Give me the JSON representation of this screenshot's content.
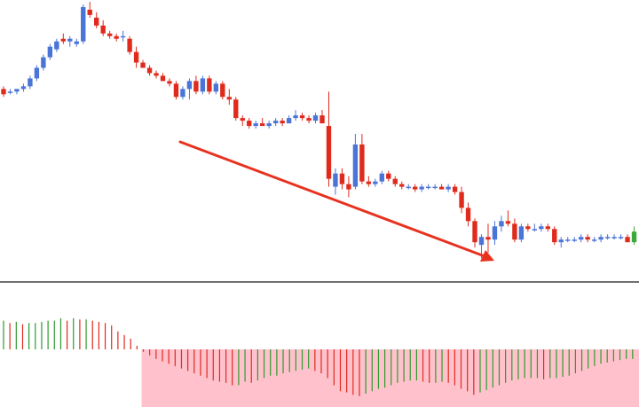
{
  "chart_data": [
    {
      "type": "candlestick",
      "title": "",
      "xlabel": "",
      "ylabel": "",
      "axes_labels_shown": false,
      "grid": false,
      "colors": {
        "up": "#4a74d8",
        "down": "#e02a1c",
        "neutral": "#3aa83a"
      },
      "ylim": [
        0,
        100
      ],
      "candles": [
        {
          "o": 67,
          "h": 68,
          "l": 64,
          "c": 65
        },
        {
          "o": 66,
          "h": 67,
          "l": 65,
          "c": 66
        },
        {
          "o": 66,
          "h": 67,
          "l": 65,
          "c": 67
        },
        {
          "o": 67,
          "h": 69,
          "l": 66,
          "c": 68
        },
        {
          "o": 68,
          "h": 72,
          "l": 67,
          "c": 71
        },
        {
          "o": 71,
          "h": 76,
          "l": 70,
          "c": 75
        },
        {
          "o": 75,
          "h": 80,
          "l": 74,
          "c": 79
        },
        {
          "o": 79,
          "h": 84,
          "l": 78,
          "c": 83
        },
        {
          "o": 82,
          "h": 86,
          "l": 81,
          "c": 85
        },
        {
          "o": 86,
          "h": 88,
          "l": 84,
          "c": 85
        },
        {
          "o": 85,
          "h": 87,
          "l": 83,
          "c": 86
        },
        {
          "o": 84,
          "h": 86,
          "l": 83,
          "c": 85
        },
        {
          "o": 85,
          "h": 99,
          "l": 84,
          "c": 98
        },
        {
          "o": 97,
          "h": 100,
          "l": 94,
          "c": 95
        },
        {
          "o": 94,
          "h": 96,
          "l": 90,
          "c": 91
        },
        {
          "o": 91,
          "h": 93,
          "l": 87,
          "c": 88
        },
        {
          "o": 88,
          "h": 89,
          "l": 86,
          "c": 87
        },
        {
          "o": 87,
          "h": 88,
          "l": 85,
          "c": 86
        },
        {
          "o": 87,
          "h": 89,
          "l": 85,
          "c": 87
        },
        {
          "o": 86,
          "h": 87,
          "l": 80,
          "c": 81
        },
        {
          "o": 81,
          "h": 83,
          "l": 75,
          "c": 77
        },
        {
          "o": 77,
          "h": 78,
          "l": 75,
          "c": 75
        },
        {
          "o": 75,
          "h": 76,
          "l": 72,
          "c": 73
        },
        {
          "o": 73,
          "h": 74,
          "l": 71,
          "c": 72
        },
        {
          "o": 72,
          "h": 73,
          "l": 70,
          "c": 70
        },
        {
          "o": 70,
          "h": 71,
          "l": 68,
          "c": 69
        },
        {
          "o": 69,
          "h": 70,
          "l": 63,
          "c": 64
        },
        {
          "o": 64,
          "h": 68,
          "l": 63,
          "c": 67
        },
        {
          "o": 67,
          "h": 71,
          "l": 63,
          "c": 70
        },
        {
          "o": 70,
          "h": 72,
          "l": 65,
          "c": 66
        },
        {
          "o": 66,
          "h": 72,
          "l": 65,
          "c": 71
        },
        {
          "o": 71,
          "h": 72,
          "l": 65,
          "c": 66
        },
        {
          "o": 66,
          "h": 70,
          "l": 65,
          "c": 69
        },
        {
          "o": 69,
          "h": 70,
          "l": 63,
          "c": 64
        },
        {
          "o": 64,
          "h": 67,
          "l": 61,
          "c": 63
        },
        {
          "o": 63,
          "h": 64,
          "l": 55,
          "c": 56
        },
        {
          "o": 56,
          "h": 57,
          "l": 53,
          "c": 55
        },
        {
          "o": 55,
          "h": 56,
          "l": 52,
          "c": 53
        },
        {
          "o": 53,
          "h": 55,
          "l": 52,
          "c": 54
        },
        {
          "o": 54,
          "h": 56,
          "l": 53,
          "c": 53
        },
        {
          "o": 53,
          "h": 55,
          "l": 52,
          "c": 54
        },
        {
          "o": 54,
          "h": 56,
          "l": 53,
          "c": 55
        },
        {
          "o": 55,
          "h": 56,
          "l": 53,
          "c": 54
        },
        {
          "o": 54,
          "h": 57,
          "l": 54,
          "c": 56
        },
        {
          "o": 56,
          "h": 59,
          "l": 55,
          "c": 57
        },
        {
          "o": 57,
          "h": 58,
          "l": 55,
          "c": 56
        },
        {
          "o": 56,
          "h": 57,
          "l": 54,
          "c": 55
        },
        {
          "o": 55,
          "h": 58,
          "l": 54,
          "c": 57
        },
        {
          "o": 57,
          "h": 59,
          "l": 54,
          "c": 54
        },
        {
          "o": 53,
          "h": 66,
          "l": 30,
          "c": 33
        },
        {
          "o": 30,
          "h": 37,
          "l": 27,
          "c": 35
        },
        {
          "o": 35,
          "h": 37,
          "l": 29,
          "c": 31
        },
        {
          "o": 31,
          "h": 34,
          "l": 26,
          "c": 29
        },
        {
          "o": 30,
          "h": 50,
          "l": 29,
          "c": 46
        },
        {
          "o": 46,
          "h": 50,
          "l": 31,
          "c": 32
        },
        {
          "o": 32,
          "h": 34,
          "l": 30,
          "c": 31
        },
        {
          "o": 31,
          "h": 33,
          "l": 30,
          "c": 32
        },
        {
          "o": 32,
          "h": 36,
          "l": 31,
          "c": 35
        },
        {
          "o": 35,
          "h": 36,
          "l": 32,
          "c": 33
        },
        {
          "o": 33,
          "h": 34,
          "l": 30,
          "c": 31
        },
        {
          "o": 31,
          "h": 32,
          "l": 29,
          "c": 30
        },
        {
          "o": 30,
          "h": 31,
          "l": 29,
          "c": 30
        },
        {
          "o": 30,
          "h": 31,
          "l": 28,
          "c": 29
        },
        {
          "o": 29,
          "h": 31,
          "l": 28,
          "c": 30
        },
        {
          "o": 30,
          "h": 31,
          "l": 29,
          "c": 30
        },
        {
          "o": 30,
          "h": 31,
          "l": 29,
          "c": 30
        },
        {
          "o": 30,
          "h": 31,
          "l": 29,
          "c": 29
        },
        {
          "o": 29,
          "h": 31,
          "l": 28,
          "c": 30
        },
        {
          "o": 30,
          "h": 31,
          "l": 27,
          "c": 28
        },
        {
          "o": 28,
          "h": 30,
          "l": 20,
          "c": 22
        },
        {
          "o": 22,
          "h": 24,
          "l": 15,
          "c": 17
        },
        {
          "o": 17,
          "h": 18,
          "l": 7,
          "c": 9
        },
        {
          "o": 8,
          "h": 12,
          "l": 3,
          "c": 11
        },
        {
          "o": 11,
          "h": 16,
          "l": 5,
          "c": 10
        },
        {
          "o": 10,
          "h": 17,
          "l": 8,
          "c": 15
        },
        {
          "o": 15,
          "h": 19,
          "l": 13,
          "c": 17
        },
        {
          "o": 17,
          "h": 21,
          "l": 15,
          "c": 16
        },
        {
          "o": 16,
          "h": 18,
          "l": 9,
          "c": 10
        },
        {
          "o": 10,
          "h": 16,
          "l": 9,
          "c": 15
        },
        {
          "o": 15,
          "h": 16,
          "l": 13,
          "c": 14
        },
        {
          "o": 14,
          "h": 16,
          "l": 13,
          "c": 14
        },
        {
          "o": 14,
          "h": 16,
          "l": 13,
          "c": 15
        },
        {
          "o": 15,
          "h": 16,
          "l": 13,
          "c": 14
        },
        {
          "o": 14,
          "h": 15,
          "l": 8,
          "c": 9
        },
        {
          "o": 9,
          "h": 11,
          "l": 7,
          "c": 10
        },
        {
          "o": 10,
          "h": 11,
          "l": 9,
          "c": 10
        },
        {
          "o": 10,
          "h": 11,
          "l": 9,
          "c": 10
        },
        {
          "o": 10,
          "h": 12,
          "l": 9,
          "c": 11
        },
        {
          "o": 11,
          "h": 12,
          "l": 9,
          "c": 10
        },
        {
          "o": 10,
          "h": 11,
          "l": 9,
          "c": 10
        },
        {
          "o": 10,
          "h": 12,
          "l": 9,
          "c": 11
        },
        {
          "o": 11,
          "h": 12,
          "l": 10,
          "c": 11
        },
        {
          "o": 11,
          "h": 12,
          "l": 10,
          "c": 11
        },
        {
          "o": 11,
          "h": 12,
          "l": 10,
          "c": 11
        },
        {
          "o": 11,
          "h": 12,
          "l": 9,
          "c": 9
        },
        {
          "o": 9,
          "h": 15,
          "l": 8,
          "c": 13
        }
      ],
      "annotation": {
        "type": "arrow",
        "meaning": "downtrend",
        "color": "#e8321f"
      }
    },
    {
      "type": "histogram",
      "title": "",
      "colors": {
        "up": "#2e9a2e",
        "down": "#e02a1c",
        "shaded_region": "#ffc2cc"
      },
      "baseline": 0,
      "values": [
        24,
        22,
        23,
        21,
        22,
        22,
        23,
        24,
        24,
        26,
        24,
        26,
        25,
        25,
        24,
        23,
        22,
        20,
        15,
        12,
        9,
        3,
        -2,
        -5,
        -8,
        -10,
        -12,
        -14,
        -16,
        -18,
        -20,
        -22,
        -24,
        -26,
        -27,
        -28,
        -30,
        -30,
        -27,
        -28,
        -26,
        -24,
        -22,
        -22,
        -20,
        -19,
        -18,
        -17,
        -16,
        -18,
        -20,
        -24,
        -30,
        -35,
        -36,
        -38,
        -39,
        -37,
        -35,
        -33,
        -32,
        -30,
        -28,
        -27,
        -26,
        -26,
        -27,
        -28,
        -28,
        -27,
        -28,
        -30,
        -33,
        -35,
        -38,
        -36,
        -34,
        -32,
        -30,
        -28,
        -26,
        -25,
        -24,
        -24,
        -24,
        -25,
        -24,
        -24,
        -23,
        -22,
        -20,
        -18,
        -16,
        -14,
        -12,
        -11,
        -10,
        -9,
        -8,
        -8
      ],
      "shaded_from_index": 22
    }
  ]
}
